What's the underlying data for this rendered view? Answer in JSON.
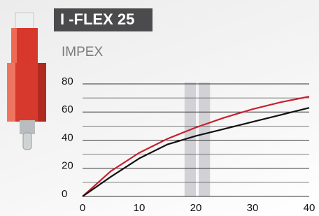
{
  "header": {
    "title": "I -FLEX 25",
    "brand": "IMPEX"
  },
  "chart_data": {
    "type": "line",
    "x": [
      0,
      5,
      10,
      15,
      20,
      25,
      30,
      35,
      40
    ],
    "series": [
      {
        "color": "#c8202f",
        "values": [
          0,
          18,
          31,
          41,
          49,
          56,
          62,
          67,
          71
        ]
      },
      {
        "color": "#111111",
        "values": [
          0,
          14,
          27,
          37,
          43,
          48,
          53,
          58,
          63
        ]
      }
    ],
    "xlim": [
      0,
      40
    ],
    "xticks": [
      0,
      10,
      20,
      30,
      40
    ],
    "ylim": [
      0,
      80
    ],
    "yticks": [
      0,
      20,
      40,
      60,
      80
    ],
    "minor_yticks": [
      10,
      30,
      50,
      70
    ],
    "bands": [
      [
        18,
        20
      ],
      [
        20.5,
        22.5
      ]
    ],
    "band_color": "#d2d2d6",
    "grid": true
  }
}
